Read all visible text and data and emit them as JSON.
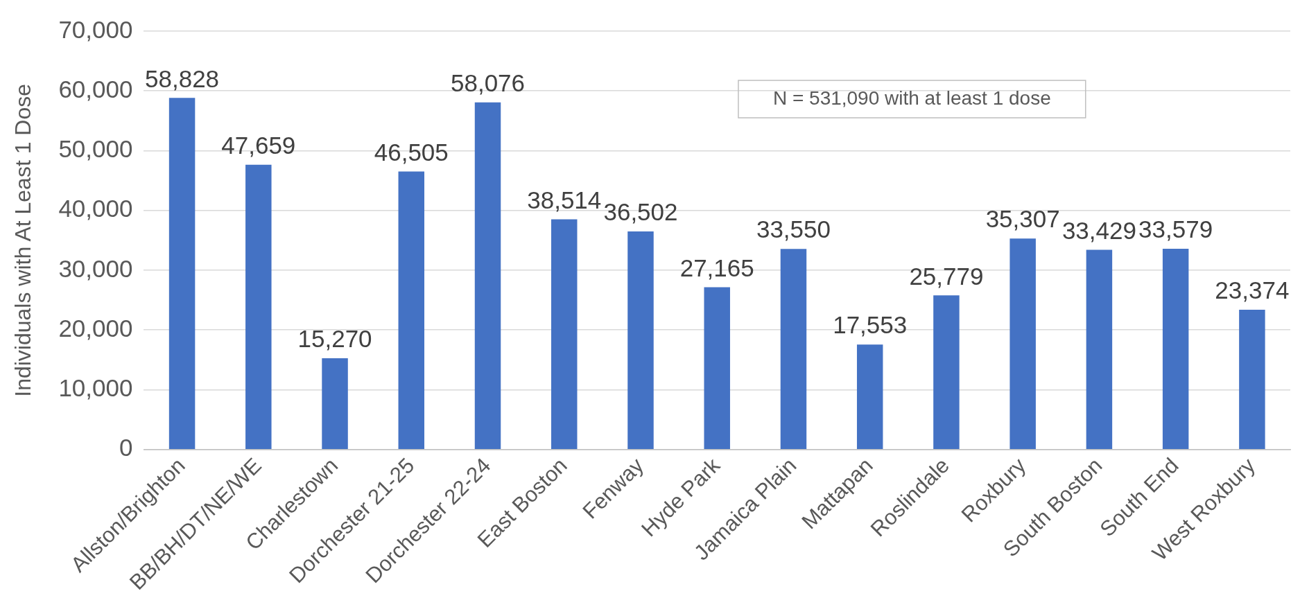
{
  "chart_data": {
    "type": "bar",
    "ylabel": "Individuals with At Least 1 Dose",
    "categories": [
      "Allston/Brighton",
      "BB/BH/DT/NE/WE",
      "Charlestown",
      "Dorchester 21-25",
      "Dorchester 22-24",
      "East Boston",
      "Fenway",
      "Hyde Park",
      "Jamaica Plain",
      "Mattapan",
      "Roslindale",
      "Roxbury",
      "South Boston",
      "South End",
      "West Roxbury"
    ],
    "values": [
      58828,
      47659,
      15270,
      46505,
      58076,
      38514,
      36502,
      27165,
      33550,
      17553,
      25779,
      35307,
      33429,
      33579,
      23374
    ],
    "value_labels": [
      "58,828",
      "47,659",
      "15,270",
      "46,505",
      "58,076",
      "38,514",
      "36,502",
      "27,165",
      "33,550",
      "17,553",
      "25,779",
      "35,307",
      "33,429",
      "33,579",
      "23,374"
    ],
    "color": "#4472c4",
    "ylim": [
      0,
      70000
    ],
    "yticks": [
      0,
      {
        "value": 10000,
        "label": "10,000"
      },
      {
        "value": 20000,
        "label": "20,000"
      },
      {
        "value": 30000,
        "label": "30,000"
      },
      {
        "value": 40000,
        "label": "40,000"
      },
      {
        "value": 50000,
        "label": "50,000"
      },
      {
        "value": 60000,
        "label": "60,000"
      },
      {
        "value": 70000,
        "label": "70,000"
      }
    ],
    "grid": "y",
    "annotations": [
      "N = 531,090 with at least 1 dose"
    ]
  }
}
